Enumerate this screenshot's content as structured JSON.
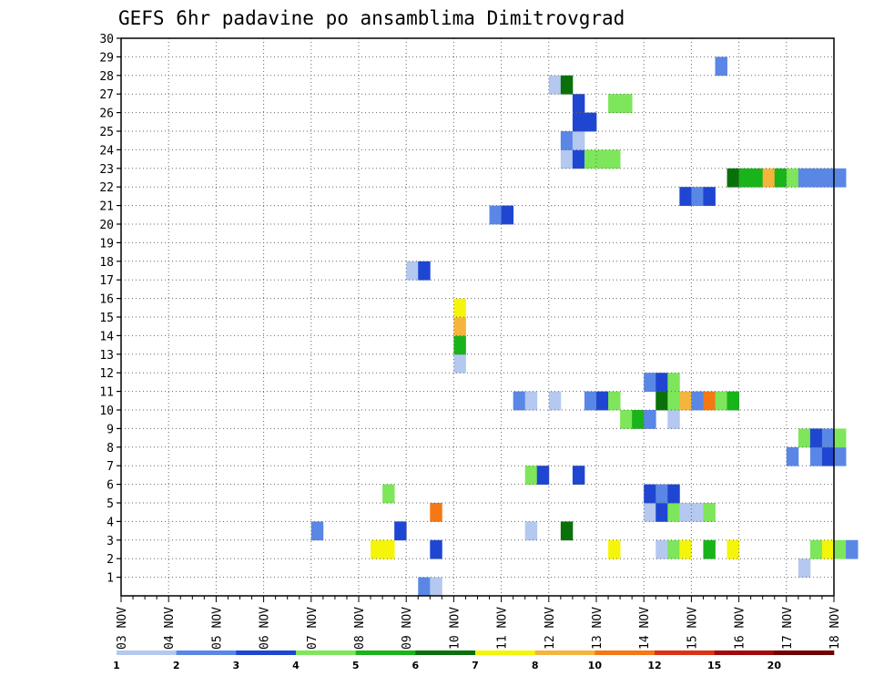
{
  "chart_data": {
    "type": "heatmap",
    "title": "GEFS 6hr padavine po ansamblima Dimitrovgrad",
    "y_range": [
      0,
      30
    ],
    "y_ticks": [
      "1",
      "2",
      "3",
      "4",
      "5",
      "6",
      "7",
      "8",
      "9",
      "10",
      "11",
      "12",
      "13",
      "14",
      "15",
      "16",
      "17",
      "18",
      "19",
      "20",
      "21",
      "22",
      "23",
      "24",
      "25",
      "26",
      "27",
      "28",
      "29",
      "30"
    ],
    "x_ticks": [
      "03 NOV",
      "04 NOV",
      "05 NOV",
      "06 NOV",
      "07 NOV",
      "08 NOV",
      "09 NOV",
      "10 NOV",
      "11 NOV",
      "12 NOV",
      "13 NOV",
      "14 NOV",
      "15 NOV",
      "16 NOV",
      "17 NOV",
      "18 NOV"
    ],
    "time_step_hours": 6,
    "grid": true,
    "colorbar": {
      "placement": "bottom",
      "labels": [
        "1",
        "2",
        "3",
        "4",
        "5",
        "6",
        "7",
        "8",
        "10",
        "12",
        "15",
        "20"
      ],
      "colors": [
        "#b4c8f0",
        "#5a87e6",
        "#1e46d2",
        "#7de65a",
        "#19b419",
        "#0a700a",
        "#f5f50a",
        "#f5b43c",
        "#f57814",
        "#dc3214",
        "#a00a0a",
        "#700000"
      ]
    },
    "cells": [
      {
        "m": 0,
        "s": [
          [
            25,
            2
          ],
          [
            26,
            1
          ]
        ]
      },
      {
        "m": 1,
        "s": [
          [
            57,
            1
          ]
        ]
      },
      {
        "m": 2,
        "s": [
          [
            21,
            7
          ],
          [
            22,
            7
          ],
          [
            26,
            3
          ],
          [
            41,
            7
          ],
          [
            45,
            1
          ],
          [
            46,
            4
          ],
          [
            47,
            7
          ],
          [
            49,
            5
          ],
          [
            51,
            7
          ],
          [
            58,
            4
          ],
          [
            59,
            7
          ],
          [
            60,
            4
          ],
          [
            61,
            2
          ]
        ]
      },
      {
        "m": 3,
        "s": [
          [
            16,
            2
          ],
          [
            23,
            3
          ],
          [
            34,
            1
          ],
          [
            37,
            6
          ]
        ]
      },
      {
        "m": 4,
        "s": [
          [
            26,
            9
          ],
          [
            44,
            1
          ],
          [
            45,
            3
          ],
          [
            46,
            4
          ],
          [
            47,
            1
          ],
          [
            48,
            1
          ],
          [
            49,
            4
          ]
        ]
      },
      {
        "m": 5,
        "s": [
          [
            22,
            4
          ],
          [
            44,
            3
          ],
          [
            45,
            2
          ],
          [
            46,
            3
          ]
        ]
      },
      {
        "m": 6,
        "s": [
          [
            34,
            4
          ],
          [
            35,
            3
          ],
          [
            38,
            3
          ]
        ]
      },
      {
        "m": 7,
        "s": [
          [
            56,
            2
          ],
          [
            58,
            2
          ],
          [
            59,
            3
          ],
          [
            60,
            2
          ]
        ]
      },
      {
        "m": 8,
        "s": [
          [
            57,
            4
          ],
          [
            58,
            3
          ],
          [
            59,
            2
          ],
          [
            60,
            4
          ]
        ]
      },
      {
        "m": 9,
        "s": [
          [
            42,
            4
          ],
          [
            43,
            5
          ],
          [
            44,
            2
          ],
          [
            46,
            1
          ]
        ]
      },
      {
        "m": 10,
        "s": [
          [
            33,
            2
          ],
          [
            34,
            1
          ],
          [
            36,
            1
          ],
          [
            39,
            2
          ],
          [
            40,
            3
          ],
          [
            41,
            4
          ],
          [
            45,
            6
          ],
          [
            46,
            4
          ],
          [
            47,
            8
          ],
          [
            48,
            2
          ],
          [
            49,
            9
          ],
          [
            50,
            4
          ],
          [
            51,
            5
          ]
        ]
      },
      {
        "m": 11,
        "s": [
          [
            44,
            2
          ],
          [
            45,
            3
          ],
          [
            46,
            4
          ]
        ]
      },
      {
        "m": 12,
        "s": [
          [
            28,
            1
          ]
        ]
      },
      {
        "m": 13,
        "s": [
          [
            28,
            5
          ]
        ]
      },
      {
        "m": 14,
        "s": [
          [
            28,
            8
          ]
        ]
      },
      {
        "m": 15,
        "s": [
          [
            28,
            7
          ]
        ]
      },
      {
        "m": 17,
        "s": [
          [
            24,
            1
          ],
          [
            25,
            3
          ]
        ]
      },
      {
        "m": 18,
        "s": [
          [
            68,
            7
          ],
          [
            72,
            3
          ],
          [
            73,
            2
          ],
          [
            74,
            3
          ],
          [
            75,
            2
          ],
          [
            76,
            1
          ],
          [
            77,
            2
          ],
          [
            78,
            3
          ]
        ]
      },
      {
        "m": 19,
        "s": [
          [
            64,
            2
          ],
          [
            65,
            5
          ],
          [
            66,
            3
          ],
          [
            67,
            3
          ],
          [
            68,
            3
          ],
          [
            69,
            2
          ],
          [
            71,
            5
          ],
          [
            73,
            1
          ],
          [
            74,
            7
          ],
          [
            75,
            4
          ]
        ]
      },
      {
        "m": 20,
        "s": [
          [
            31,
            2
          ],
          [
            32,
            3
          ]
        ]
      },
      {
        "m": 21,
        "s": [
          [
            47,
            3
          ],
          [
            48,
            2
          ],
          [
            49,
            3
          ]
        ]
      },
      {
        "m": 22,
        "s": [
          [
            51,
            6
          ],
          [
            52,
            5
          ],
          [
            53,
            5
          ],
          [
            54,
            8
          ],
          [
            55,
            5
          ],
          [
            56,
            4
          ],
          [
            57,
            2
          ],
          [
            58,
            2
          ],
          [
            59,
            2
          ],
          [
            60,
            2
          ]
        ]
      },
      {
        "m": 23,
        "s": [
          [
            37,
            1
          ],
          [
            38,
            3
          ],
          [
            39,
            4
          ],
          [
            40,
            4
          ],
          [
            41,
            4
          ]
        ]
      },
      {
        "m": 24,
        "s": [
          [
            37,
            2
          ],
          [
            38,
            1
          ]
        ]
      },
      {
        "m": 25,
        "s": [
          [
            38,
            3
          ],
          [
            39,
            3
          ]
        ]
      },
      {
        "m": 26,
        "s": [
          [
            38,
            3
          ],
          [
            41,
            4
          ],
          [
            42,
            4
          ]
        ]
      },
      {
        "m": 27,
        "s": [
          [
            36,
            1
          ],
          [
            37,
            6
          ]
        ]
      },
      {
        "m": 28,
        "s": [
          [
            50,
            2
          ]
        ]
      }
    ]
  }
}
